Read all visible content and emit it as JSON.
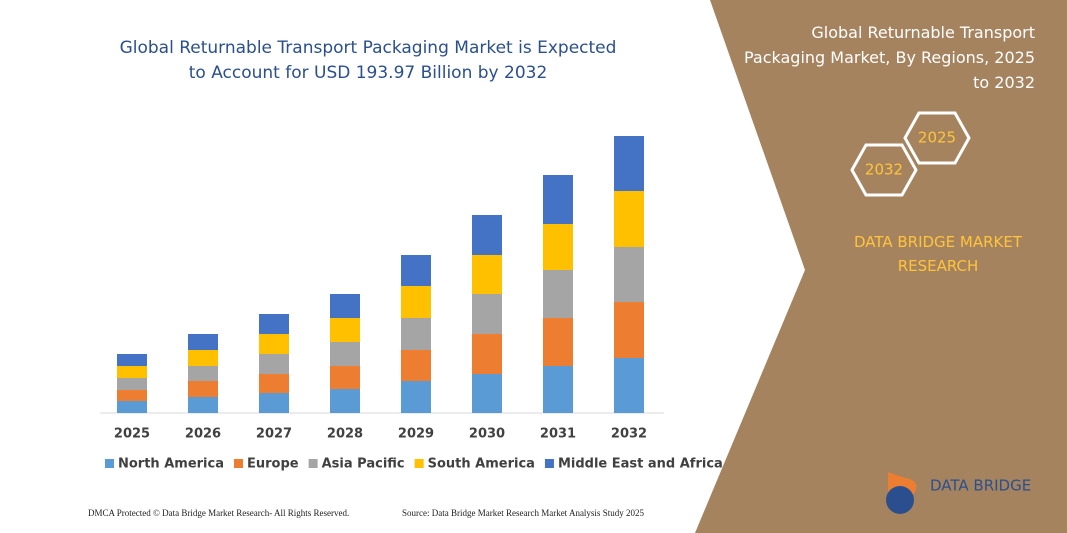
{
  "chart_data": {
    "type": "stacked-bar",
    "title": "Global Returnable Transport Packaging Market is Expected to Account for USD 193.97 Billion by 2032",
    "categories": [
      "2025",
      "2026",
      "2027",
      "2028",
      "2029",
      "2030",
      "2031",
      "2032"
    ],
    "series": [
      {
        "name": "North America",
        "color": "#5b9bd5",
        "values": [
          12,
          16,
          20,
          24,
          32,
          39,
          47,
          55
        ]
      },
      {
        "name": "Europe",
        "color": "#ed7d31",
        "values": [
          11,
          16,
          19,
          23,
          31,
          40,
          48,
          56
        ]
      },
      {
        "name": "Asia Pacific",
        "color": "#a5a5a5",
        "values": [
          12,
          15,
          20,
          24,
          32,
          40,
          48,
          55
        ]
      },
      {
        "name": "South America",
        "color": "#ffc000",
        "values": [
          12,
          16,
          20,
          24,
          32,
          39,
          46,
          56
        ]
      },
      {
        "name": "Middle East and Africa",
        "color": "#4472c4",
        "values": [
          12,
          16,
          20,
          24,
          31,
          40,
          49,
          55
        ]
      }
    ]
  },
  "panel": {
    "title": "Global Returnable Transport Packaging Market, By Regions, 2025 to 2032",
    "hex_a": "2025",
    "hex_b": "2032",
    "brand": "DATA BRIDGE MARKET RESEARCH",
    "logo": "DATA BRIDGE"
  },
  "footer": {
    "left": "DMCA Protected © Data Bridge Market Research- All Rights Reserved.",
    "right": "Source: Data Bridge Market Research Market Analysis Study 2025"
  }
}
